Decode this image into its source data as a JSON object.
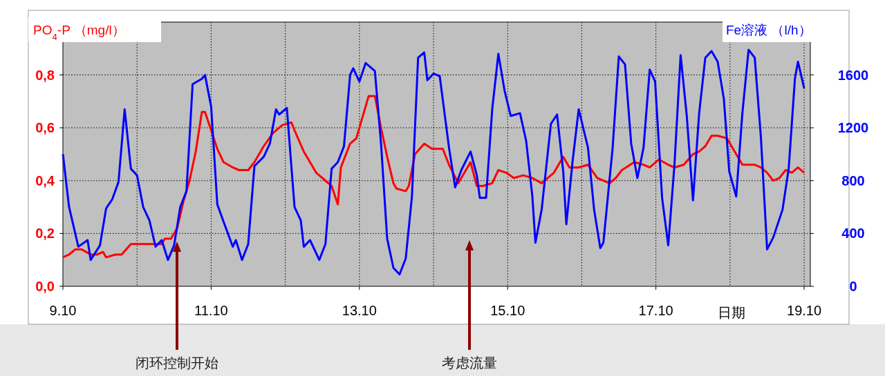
{
  "chart_data": {
    "type": "line",
    "ylabel": "PO$_{4}$-P （mg/l）",
    "y2label": "Fe溶液 （l/h）",
    "xlabel": "日期",
    "xlim": [
      "--10-09",
      "--10-19T02:00"
    ],
    "xticks": [
      {
        "value": "--10-09",
        "label": "9.10"
      },
      {
        "value": "--10-11",
        "label": "11.10"
      },
      {
        "value": "--10-13",
        "label": "13.10"
      },
      {
        "value": "--10-15",
        "label": "15.10"
      },
      {
        "value": "--10-17",
        "label": "17.10"
      },
      {
        "value": "--10-19",
        "label": "19.10"
      }
    ],
    "ylim": [
      0,
      1.0
    ],
    "yticks": [
      {
        "value": 0,
        "label": "0,0"
      },
      {
        "value": 0.2,
        "label": "0,2"
      },
      {
        "value": 0.4,
        "label": "0,4"
      },
      {
        "value": 0.6,
        "label": "0,6"
      },
      {
        "value": 0.8,
        "label": "0,8"
      }
    ],
    "y2lim": [
      0,
      2000
    ],
    "y2ticks": [
      0,
      400,
      800,
      1200,
      1600
    ],
    "grid": true,
    "series": [
      {
        "color": "#ff0000",
        "x": [
          "--10-09T00:00",
          "--10-09T02:00",
          "--10-09T04:00",
          "--10-09T06:00",
          "--10-09T09:00",
          "--10-09T11:00",
          "--10-09T13:00",
          "--10-09T14:00",
          "--10-09T17:00",
          "--10-09T19:00",
          "--10-09T22:00",
          "--10-10T00:00",
          "--10-10T04:00",
          "--10-10T08:00",
          "--10-10T09:00",
          "--10-10T11:00",
          "--10-10T13:00",
          "--10-10T15:00",
          "--10-10T17:00",
          "--10-10T19:00",
          "--10-10T21:00",
          "--10-10T22:00",
          "--10-11T00:00",
          "--10-11T02:00",
          "--10-11T04:00",
          "--10-11T07:00",
          "--10-11T09:00",
          "--10-11T12:00",
          "--10-11T14:00",
          "--10-11T17:00",
          "--10-11T20:00",
          "--10-11T23:00",
          "--10-12T02:00",
          "--10-12T03:00",
          "--10-12T06:00",
          "--10-12T10:00",
          "--10-12T12:00",
          "--10-12T15:00",
          "--10-12T17:00",
          "--10-12T18:00",
          "--10-12T21:00",
          "--10-12T23:00",
          "--10-13T01:00",
          "--10-13T03:00",
          "--10-13T05:00",
          "--10-13T07:00",
          "--10-13T09:00",
          "--10-13T11:00",
          "--10-13T12:00",
          "--10-13T15:00",
          "--10-13T16:00",
          "--10-13T18:00",
          "--10-13T21:00",
          "--10-13T23:30",
          "--10-14T03:00",
          "--10-14T05:00",
          "--10-14T08:00",
          "--10-14T12:00",
          "--10-14T14:00",
          "--10-14T16:00",
          "--10-14T19:00",
          "--10-14T21:00",
          "--10-14T23:30",
          "--10-15T02:00",
          "--10-15T05:00",
          "--10-15T08:00",
          "--10-15T11:00",
          "--10-15T15:00",
          "--10-15T18:00",
          "--10-15T20:00",
          "--10-15T23:00",
          "--10-16T02:00",
          "--10-16T05:00",
          "--10-16T09:00",
          "--10-16T11:00",
          "--10-16T13:00",
          "--10-16T17:00",
          "--10-16T20:00",
          "--10-16T22:00",
          "--10-17T01:00",
          "--10-17T04:00",
          "--10-17T06:00",
          "--10-17T09:00",
          "--10-17T12:00",
          "--10-17T14:00",
          "--10-17T16:00",
          "--10-17T18:00",
          "--10-17T20:00",
          "--10-17T23:00",
          "--10-18T01:00",
          "--10-18T04:00",
          "--10-18T08:00",
          "--10-18T10:00",
          "--10-18T12:00",
          "--10-18T14:00",
          "--10-18T16:00",
          "--10-18T18:00",
          "--10-18T20:00",
          "--10-18T22:00",
          "--10-19T00:00"
        ],
        "values": [
          0.11,
          0.12,
          0.14,
          0.14,
          0.12,
          0.12,
          0.13,
          0.11,
          0.12,
          0.12,
          0.16,
          0.16,
          0.16,
          0.16,
          0.18,
          0.18,
          0.22,
          0.32,
          0.4,
          0.51,
          0.66,
          0.66,
          0.59,
          0.52,
          0.47,
          0.45,
          0.44,
          0.44,
          0.47,
          0.53,
          0.58,
          0.61,
          0.62,
          0.59,
          0.51,
          0.43,
          0.41,
          0.38,
          0.31,
          0.45,
          0.54,
          0.56,
          0.64,
          0.72,
          0.72,
          0.6,
          0.49,
          0.39,
          0.37,
          0.36,
          0.38,
          0.5,
          0.54,
          0.52,
          0.52,
          0.46,
          0.39,
          0.47,
          0.38,
          0.38,
          0.39,
          0.44,
          0.43,
          0.41,
          0.42,
          0.41,
          0.39,
          0.43,
          0.49,
          0.45,
          0.45,
          0.46,
          0.41,
          0.39,
          0.41,
          0.44,
          0.47,
          0.46,
          0.45,
          0.48,
          0.46,
          0.45,
          0.46,
          0.5,
          0.51,
          0.53,
          0.57,
          0.57,
          0.56,
          0.52,
          0.46,
          0.46,
          0.45,
          0.43,
          0.4,
          0.41,
          0.44,
          0.43,
          0.45,
          0.43
        ]
      },
      {
        "color": "#0000ff",
        "axis": "y2",
        "x": [
          "--10-09T00:00",
          "--10-09T02:00",
          "--10-09T03:00",
          "--10-09T05:00",
          "--10-09T08:00",
          "--10-09T09:00",
          "--10-09T12:00",
          "--10-09T14:00",
          "--10-09T16:00",
          "--10-09T18:00",
          "--10-09T20:00",
          "--10-09T22:00",
          "--10-10T00:00",
          "--10-10T02:00",
          "--10-10T04:00",
          "--10-10T06:00",
          "--10-10T08:00",
          "--10-10T10:00",
          "--10-10T12:00",
          "--10-10T14:00",
          "--10-10T16:00",
          "--10-10T18:00",
          "--10-10T21:00",
          "--10-10T22:00",
          "--10-11T00:00",
          "--10-11T02:00",
          "--10-11T04:00",
          "--10-11T07:00",
          "--10-11T08:00",
          "--10-11T10:00",
          "--10-11T12:00",
          "--10-11T14:00",
          "--10-11T17:00",
          "--10-11T19:00",
          "--10-11T21:00",
          "--10-11T22:00",
          "--10-12T00:30",
          "--10-12T03:00",
          "--10-12T05:00",
          "--10-12T06:00",
          "--10-12T08:00",
          "--10-12T11:00",
          "--10-12T13:00",
          "--10-12T15:00",
          "--10-12T17:00",
          "--10-12T19:00",
          "--10-12T21:00",
          "--10-12T22:00",
          "--10-13T00:00",
          "--10-13T02:00",
          "--10-13T05:00",
          "--10-13T07:00",
          "--10-13T09:00",
          "--10-13T11:00",
          "--10-13T13:00",
          "--10-13T15:00",
          "--10-13T17:00",
          "--10-13T19:00",
          "--10-13T21:00",
          "--10-13T22:00",
          "--10-14T00:00",
          "--10-14T02:00",
          "--10-14T05:00",
          "--10-14T07:00",
          "--10-14T09:00",
          "--10-14T12:00",
          "--10-14T14:00",
          "--10-14T15:00",
          "--10-14T17:00",
          "--10-14T19:00",
          "--10-14T21:00",
          "--10-14T23:00",
          "--10-15T01:00",
          "--10-15T04:00",
          "--10-15T06:00",
          "--10-15T08:00",
          "--10-15T09:00",
          "--10-15T11:00",
          "--10-15T14:00",
          "--10-15T16:00",
          "--10-15T18:00",
          "--10-15T19:00",
          "--10-15T21:00",
          "--10-15T23:00",
          "--10-16T02:00",
          "--10-16T04:00",
          "--10-16T06:00",
          "--10-16T07:00",
          "--10-16T10:00",
          "--10-16T12:00",
          "--10-16T14:00",
          "--10-16T16:00",
          "--10-16T18:00",
          "--10-16T20:00",
          "--10-16T22:00",
          "--10-16T23:45",
          "--10-17T02:00",
          "--10-17T04:00",
          "--10-17T06:00",
          "--10-17T08:00",
          "--10-17T10:00",
          "--10-17T12:00",
          "--10-17T14:00",
          "--10-17T16:00",
          "--10-17T18:00",
          "--10-17T20:00",
          "--10-17T22:00",
          "--10-17T23:45",
          "--10-18T02:00",
          "--10-18T04:00",
          "--10-18T06:00",
          "--10-18T08:00",
          "--10-18T10:00",
          "--10-18T12:00",
          "--10-18T14:00",
          "--10-18T17:00",
          "--10-18T19:00",
          "--10-18T21:00",
          "--10-18T22:00",
          "--10-19T00:00"
        ],
        "values": [
          1000,
          600,
          500,
          300,
          350,
          200,
          310,
          590,
          660,
          790,
          1340,
          890,
          840,
          600,
          500,
          300,
          350,
          200,
          310,
          600,
          720,
          1530,
          1570,
          1600,
          1360,
          620,
          490,
          300,
          350,
          200,
          320,
          910,
          980,
          1080,
          1340,
          1300,
          1350,
          600,
          500,
          300,
          350,
          200,
          320,
          890,
          940,
          1060,
          1600,
          1650,
          1550,
          1690,
          1630,
          1080,
          360,
          140,
          90,
          210,
          680,
          1730,
          1770,
          1560,
          1610,
          1590,
          1050,
          750,
          880,
          1020,
          840,
          670,
          670,
          1340,
          1760,
          1480,
          1290,
          1310,
          1100,
          680,
          330,
          580,
          1230,
          1300,
          870,
          470,
          940,
          1340,
          1050,
          580,
          290,
          330,
          1050,
          1740,
          1680,
          1080,
          820,
          1050,
          1640,
          1550,
          670,
          310,
          920,
          1750,
          1290,
          650,
          1310,
          1730,
          1780,
          1700,
          1420,
          870,
          680,
          1310,
          1790,
          1730,
          1130,
          280,
          370,
          580,
          890,
          1570,
          1700,
          1500
        ]
      }
    ],
    "annotations": [
      "闭环控制开始",
      "考虑流量"
    ]
  }
}
